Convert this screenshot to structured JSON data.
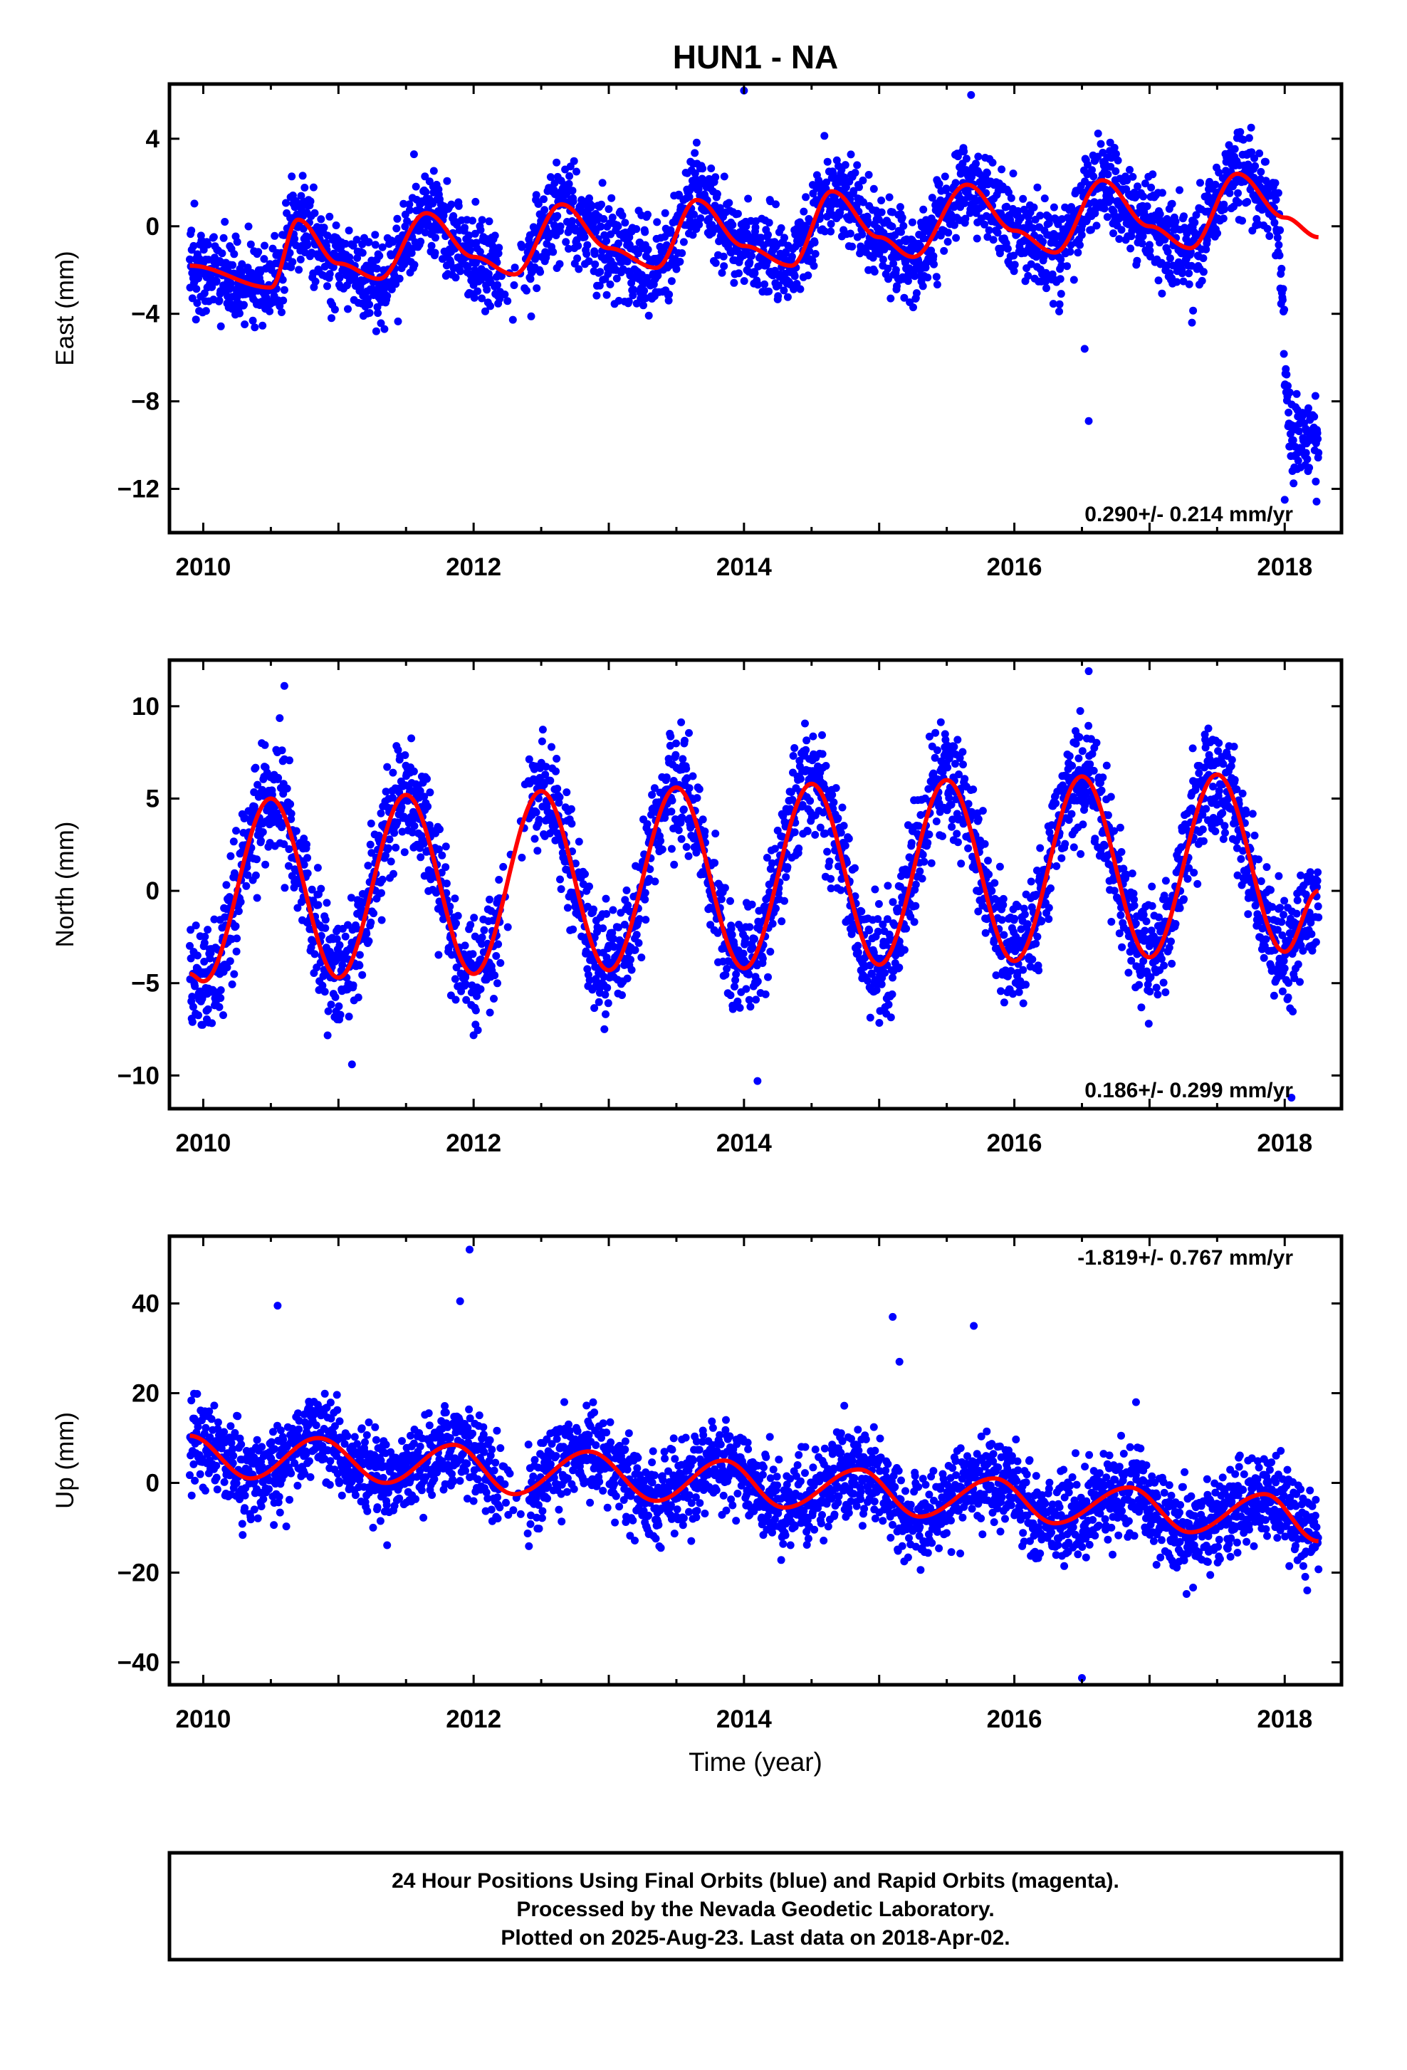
{
  "title": "HUN1 - NA",
  "colors": {
    "final_points": "#0000ff",
    "model_curve": "#ff0000",
    "frame": "#000000"
  },
  "caption_lines": [
    "24 Hour Positions Using Final Orbits (blue) and Rapid Orbits (magenta).",
    "Processed by the Nevada Geodetic Laboratory.",
    "Plotted on 2025-Aug-23. Last data on 2018-Apr-02."
  ],
  "chart_data": [
    {
      "type": "scatter",
      "title": "HUN1 - NA",
      "ylabel": "East (mm)",
      "xlabel": "",
      "xlim": [
        2009.75,
        2018.42
      ],
      "ylim": [
        -14,
        6.5
      ],
      "xticks": [
        "2010",
        "2012",
        "2014",
        "2016",
        "2018"
      ],
      "yticks": [
        "4",
        "0",
        "−4",
        "−8",
        "−12"
      ],
      "rate_label": "0.290+/- 0.214 mm/yr",
      "rate_position": "bottom-right",
      "grid": false,
      "series": [
        {
          "name": "Final Orbits (blue)",
          "kind": "points",
          "x_range": [
            2009.9,
            2018.25
          ],
          "approx_count": 2900,
          "scatter_sd_mm": 1.0
        },
        {
          "kind": "model-curve",
          "x": [
            2009.9,
            2010.5,
            2010.7,
            2011.0,
            2011.3,
            2011.65,
            2012.0,
            2012.3,
            2012.65,
            2013.0,
            2013.35,
            2013.65,
            2014.0,
            2014.35,
            2014.65,
            2015.0,
            2015.25,
            2015.65,
            2016.0,
            2016.3,
            2016.65,
            2017.0,
            2017.3,
            2017.65,
            2018.0,
            2018.25
          ],
          "y": [
            -1.8,
            -2.8,
            0.3,
            -1.7,
            -2.4,
            0.6,
            -1.4,
            -2.2,
            1.0,
            -1.0,
            -1.9,
            1.2,
            -0.9,
            -1.8,
            1.6,
            -0.5,
            -1.4,
            1.9,
            -0.2,
            -1.2,
            2.1,
            0.0,
            -1.0,
            2.4,
            0.4,
            -0.5
          ]
        },
        {
          "name": "post-2018 offset",
          "kind": "points",
          "x_range": [
            2017.95,
            2018.25
          ],
          "approx_level_mm": -9.5
        }
      ],
      "outliers": [
        {
          "x": 2016.52,
          "y": -5.6
        },
        {
          "x": 2016.55,
          "y": -8.9
        },
        {
          "x": 2014.0,
          "y": 6.2
        },
        {
          "x": 2015.68,
          "y": 6.0
        },
        {
          "x": 2018.0,
          "y": -12.5
        }
      ]
    },
    {
      "type": "scatter",
      "ylabel": "North (mm)",
      "xlabel": "",
      "xlim": [
        2009.75,
        2018.42
      ],
      "ylim": [
        -11.8,
        12.5
      ],
      "xticks": [
        "2010",
        "2012",
        "2014",
        "2016",
        "2018"
      ],
      "yticks": [
        "10",
        "5",
        "0",
        "−5",
        "−10"
      ],
      "rate_label": "0.186+/- 0.299 mm/yr",
      "rate_position": "bottom-right",
      "grid": false,
      "series": [
        {
          "name": "Final Orbits (blue)",
          "kind": "points",
          "x_range": [
            2009.9,
            2018.25
          ],
          "approx_count": 2900,
          "scatter_sd_mm": 1.5
        },
        {
          "kind": "model-curve",
          "x": [
            2009.9,
            2010.0,
            2010.5,
            2011.0,
            2011.5,
            2012.0,
            2012.5,
            2013.0,
            2013.5,
            2014.0,
            2014.5,
            2015.0,
            2015.5,
            2016.0,
            2016.5,
            2017.0,
            2017.5,
            2018.0,
            2018.25
          ],
          "y": [
            -4.5,
            -4.9,
            5.0,
            -4.7,
            5.2,
            -4.5,
            5.4,
            -4.3,
            5.6,
            -4.2,
            5.8,
            -4.0,
            6.0,
            -3.8,
            6.2,
            -3.6,
            6.3,
            -3.3,
            0.0
          ]
        }
      ],
      "outliers": [
        {
          "x": 2010.6,
          "y": 11.1
        },
        {
          "x": 2016.55,
          "y": 11.9
        },
        {
          "x": 2011.1,
          "y": -9.4
        },
        {
          "x": 2014.1,
          "y": -10.3
        },
        {
          "x": 2018.05,
          "y": -11.2
        }
      ]
    },
    {
      "type": "scatter",
      "ylabel": "Up (mm)",
      "xlabel": "Time (year)",
      "xlim": [
        2009.75,
        2018.42
      ],
      "ylim": [
        -45,
        55
      ],
      "xticks": [
        "2010",
        "2012",
        "2014",
        "2016",
        "2018"
      ],
      "yticks": [
        "40",
        "20",
        "0",
        "−20",
        "−40"
      ],
      "rate_label": "-1.819+/- 0.767 mm/yr",
      "rate_position": "top-right",
      "grid": false,
      "series": [
        {
          "name": "Final Orbits (blue)",
          "kind": "points",
          "x_range": [
            2009.9,
            2018.25
          ],
          "approx_count": 2900,
          "scatter_sd_mm": 5.0
        },
        {
          "kind": "model-curve",
          "x": [
            2009.9,
            2010.35,
            2010.85,
            2011.35,
            2011.85,
            2012.3,
            2012.85,
            2013.35,
            2013.85,
            2014.3,
            2014.85,
            2015.3,
            2015.85,
            2016.3,
            2016.85,
            2017.3,
            2017.85,
            2018.25
          ],
          "y": [
            10.5,
            1.0,
            10.0,
            0.0,
            8.5,
            -2.5,
            7.0,
            -4.0,
            5.0,
            -5.5,
            3.0,
            -7.5,
            1.0,
            -9.0,
            -1.0,
            -11.0,
            -2.5,
            -13.0
          ]
        }
      ],
      "outliers": [
        {
          "x": 2011.97,
          "y": 52.0
        },
        {
          "x": 2011.9,
          "y": 40.5
        },
        {
          "x": 2010.55,
          "y": 39.5
        },
        {
          "x": 2015.1,
          "y": 37.0
        },
        {
          "x": 2015.15,
          "y": 27.0
        },
        {
          "x": 2015.7,
          "y": 35.0
        },
        {
          "x": 2016.5,
          "y": -43.5
        },
        {
          "x": 2016.9,
          "y": 18.0
        }
      ]
    }
  ]
}
